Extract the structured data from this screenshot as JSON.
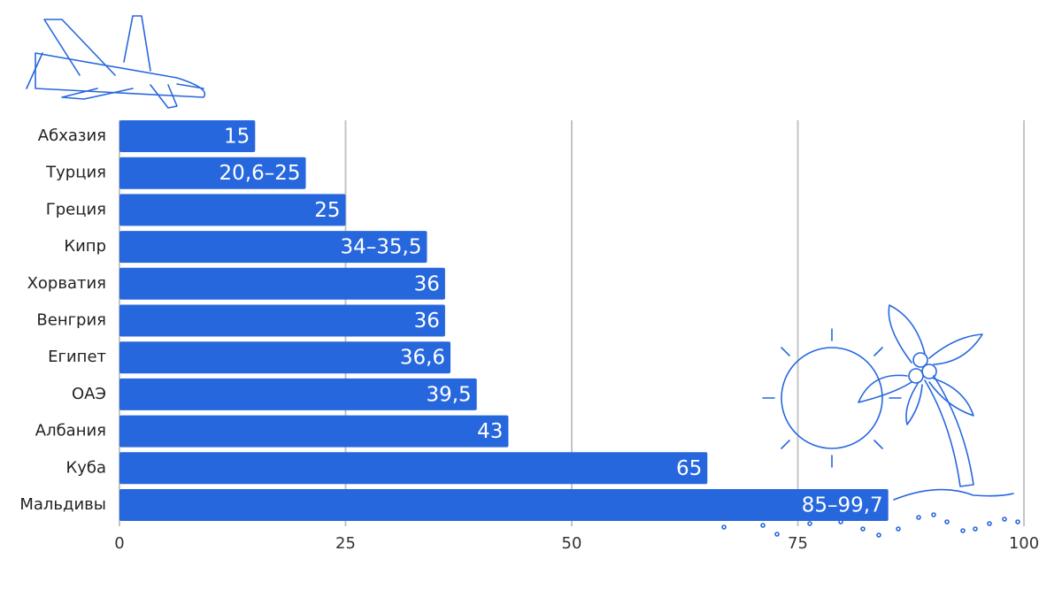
{
  "chart_data": {
    "type": "bar",
    "orientation": "horizontal",
    "categories": [
      "Абхазия",
      "Турция",
      "Греция",
      "Кипр",
      "Хорватия",
      "Венгрия",
      "Египет",
      "ОАЭ",
      "Албания",
      "Куба",
      "Мальдивы"
    ],
    "values": [
      15,
      20.6,
      25,
      34,
      36,
      36,
      36.6,
      39.5,
      43,
      65,
      85
    ],
    "value_labels": [
      "15",
      "20,6–25",
      "25",
      "34–35,5",
      "36",
      "36",
      "36,6",
      "39,5",
      "43",
      "65",
      "85–99,7"
    ],
    "color": "#2767de",
    "xlim": [
      0,
      100
    ],
    "xticks": [
      0,
      25,
      50,
      75,
      100
    ],
    "grid": true
  }
}
